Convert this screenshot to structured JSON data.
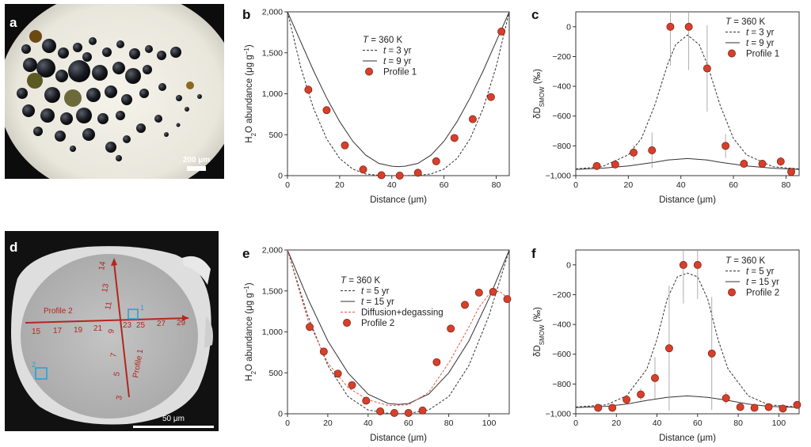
{
  "panel_labels": [
    "a",
    "b",
    "c",
    "d",
    "e",
    "f"
  ],
  "panel_a": {
    "scale_bar": "200 μm"
  },
  "panel_d": {
    "scale_bar": "50 μm",
    "profile2_label": "Profile 2",
    "profile1_label": "Profile 1",
    "profile2_numbers": [
      "15",
      "17",
      "19",
      "21",
      "23",
      "25",
      "27",
      "29"
    ],
    "profile1_numbers": [
      "14",
      "13",
      "11",
      "9",
      "7",
      "5",
      "3"
    ],
    "box_labels": [
      "1",
      "2"
    ]
  },
  "chart_data": [
    {
      "id": "b",
      "type": "line+scatter",
      "xlabel": "Distance (μm)",
      "ylabel": "H2O abundance (μg g−1)",
      "xlim": [
        0,
        85
      ],
      "ylim": [
        0,
        2000
      ],
      "xticks": [
        "0",
        "20",
        "40",
        "60",
        "80"
      ],
      "yticks": [
        "0",
        "500",
        "1,000",
        "1,500",
        "2,000"
      ],
      "legend": {
        "title": "T = 360 K",
        "entries": [
          "t = 3 yr",
          "t = 9 yr",
          "Profile 1"
        ]
      },
      "series": [
        {
          "name": "t = 3 yr",
          "style": "dashed",
          "x": [
            0,
            5,
            10,
            15,
            20,
            25,
            30,
            35,
            40,
            42.5,
            45,
            50,
            55,
            60,
            65,
            70,
            75,
            80,
            85
          ],
          "y": [
            2000,
            1330,
            820,
            450,
            210,
            80,
            20,
            4,
            0,
            0,
            0,
            4,
            20,
            80,
            210,
            450,
            820,
            1330,
            2000
          ]
        },
        {
          "name": "t = 9 yr",
          "style": "solid",
          "x": [
            0,
            5,
            10,
            15,
            20,
            25,
            30,
            35,
            40,
            42.5,
            45,
            50,
            55,
            60,
            65,
            70,
            75,
            80,
            85
          ],
          "y": [
            2000,
            1640,
            1280,
            950,
            660,
            420,
            250,
            150,
            115,
            110,
            115,
            150,
            250,
            420,
            660,
            950,
            1280,
            1640,
            2000
          ]
        },
        {
          "name": "Profile 1",
          "style": "points",
          "x": [
            8,
            15,
            22,
            29,
            36,
            43,
            50,
            57,
            64,
            71,
            78,
            82
          ],
          "y": [
            1050,
            800,
            370,
            75,
            5,
            0,
            35,
            175,
            460,
            690,
            960,
            1760
          ]
        }
      ]
    },
    {
      "id": "c",
      "type": "line+scatter",
      "xlabel": "Distance (μm)",
      "ylabel": "δDSMOW (‰)",
      "xlim": [
        0,
        85
      ],
      "ylim": [
        -1000,
        100
      ],
      "xticks": [
        "0",
        "20",
        "40",
        "60",
        "80"
      ],
      "yticks": [
        "−1,000",
        "−800",
        "−600",
        "−400",
        "−200",
        "0"
      ],
      "legend": {
        "title": "T = 360 K",
        "entries": [
          "t = 3 yr",
          "t = 9 yr",
          "Profile 1"
        ]
      },
      "series": [
        {
          "name": "t = 3 yr",
          "style": "dashed",
          "x": [
            0,
            10,
            20,
            25,
            30,
            35,
            38,
            42.5,
            47,
            50,
            55,
            60,
            65,
            75,
            85
          ],
          "y": [
            -955,
            -940,
            -860,
            -750,
            -530,
            -250,
            -120,
            -55,
            -120,
            -250,
            -530,
            -750,
            -860,
            -940,
            -955
          ]
        },
        {
          "name": "t = 9 yr",
          "style": "solid",
          "x": [
            0,
            10,
            20,
            30,
            35,
            42.5,
            50,
            55,
            65,
            75,
            85
          ],
          "y": [
            -958,
            -950,
            -935,
            -910,
            -895,
            -885,
            -895,
            -910,
            -935,
            -950,
            -958
          ]
        },
        {
          "name": "Profile 1",
          "style": "points",
          "x": [
            8,
            15,
            22,
            29,
            36,
            43,
            50,
            57,
            64,
            71,
            78,
            82
          ],
          "y": [
            -935,
            -925,
            -845,
            -830,
            0,
            0,
            -280,
            -800,
            -920,
            -920,
            -905,
            -975
          ],
          "err": [
            0,
            0,
            50,
            120,
            260,
            290,
            290,
            80,
            30,
            20,
            30,
            0
          ]
        }
      ]
    },
    {
      "id": "e",
      "type": "line+scatter",
      "xlabel": "Distance (μm)",
      "ylabel": "H2O abundance (μg g−1)",
      "xlim": [
        0,
        110
      ],
      "ylim": [
        0,
        2000
      ],
      "xticks": [
        "0",
        "20",
        "40",
        "60",
        "80",
        "100"
      ],
      "yticks": [
        "0",
        "500",
        "1,000",
        "1,500",
        "2,000"
      ],
      "legend": {
        "title": "T = 360 K",
        "entries": [
          "t = 5 yr",
          "t = 15 yr",
          "Diffusion+degassing",
          "Profile 2"
        ]
      },
      "series": [
        {
          "name": "t = 5 yr",
          "style": "dashed",
          "x": [
            0,
            10,
            20,
            30,
            40,
            50,
            55,
            60,
            70,
            80,
            90,
            100,
            110
          ],
          "y": [
            2000,
            1200,
            590,
            210,
            45,
            5,
            0,
            5,
            45,
            210,
            590,
            1200,
            2000
          ]
        },
        {
          "name": "t = 15 yr",
          "style": "solid",
          "x": [
            0,
            10,
            20,
            30,
            40,
            50,
            55,
            60,
            70,
            80,
            90,
            100,
            110
          ],
          "y": [
            2000,
            1410,
            890,
            500,
            240,
            125,
            115,
            125,
            240,
            500,
            890,
            1410,
            2000
          ]
        },
        {
          "name": "Diffusion+degassing",
          "style": "dashed-red",
          "x": [
            0,
            10,
            20,
            30,
            40,
            50,
            60,
            70,
            80,
            90,
            95,
            100,
            105,
            110
          ],
          "y": [
            2000,
            1150,
            620,
            320,
            170,
            100,
            110,
            260,
            620,
            1060,
            1300,
            1460,
            1500,
            1400
          ]
        },
        {
          "name": "Profile 2",
          "style": "points",
          "x": [
            11,
            18,
            25,
            32,
            39,
            46,
            53,
            60,
            67,
            74,
            81,
            88,
            95,
            102,
            109
          ],
          "y": [
            1060,
            760,
            490,
            350,
            160,
            30,
            10,
            10,
            40,
            630,
            1040,
            1330,
            1480,
            1490,
            1400
          ]
        }
      ]
    },
    {
      "id": "f",
      "type": "line+scatter",
      "xlabel": "Distance (μm)",
      "ylabel": "δDSMOW (‰)",
      "xlim": [
        0,
        110
      ],
      "ylim": [
        -1000,
        100
      ],
      "xticks": [
        "0",
        "20",
        "40",
        "60",
        "80",
        "100"
      ],
      "yticks": [
        "−1,000",
        "−800",
        "−600",
        "−400",
        "−200",
        "0"
      ],
      "legend": {
        "title": "T = 360 K",
        "entries": [
          "t = 5 yr",
          "t = 15 yr",
          "Profile 2"
        ]
      },
      "series": [
        {
          "name": "t = 5 yr",
          "style": "dashed",
          "x": [
            0,
            15,
            25,
            35,
            40,
            45,
            50,
            55,
            60,
            65,
            70,
            75,
            85,
            95,
            110
          ],
          "y": [
            -955,
            -940,
            -880,
            -700,
            -500,
            -230,
            -80,
            -55,
            -80,
            -230,
            -500,
            -700,
            -880,
            -940,
            -955
          ]
        },
        {
          "name": "t = 15 yr",
          "style": "solid",
          "x": [
            0,
            15,
            25,
            35,
            45,
            55,
            65,
            75,
            85,
            95,
            110
          ],
          "y": [
            -958,
            -950,
            -935,
            -910,
            -890,
            -880,
            -890,
            -910,
            -935,
            -950,
            -958
          ]
        },
        {
          "name": "Profile 2",
          "style": "points",
          "x": [
            11,
            18,
            25,
            32,
            39,
            46,
            53,
            60,
            67,
            74,
            81,
            88,
            95,
            102,
            109
          ],
          "y": [
            -960,
            -960,
            -905,
            -870,
            -760,
            -560,
            0,
            0,
            -595,
            -895,
            -955,
            -960,
            -955,
            -965,
            -940
          ],
          "err": [
            0,
            0,
            30,
            40,
            140,
            420,
            260,
            230,
            380,
            40,
            0,
            0,
            0,
            0,
            0
          ]
        }
      ]
    }
  ]
}
